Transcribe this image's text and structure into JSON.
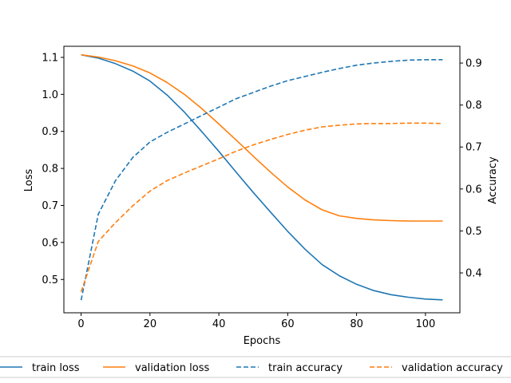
{
  "chart_data": {
    "type": "line",
    "xlabel": "Epochs",
    "ylabel_left": "Loss",
    "ylabel_right": "Accuracy",
    "xlim": [
      -5,
      110
    ],
    "ylim_left": [
      0.41,
      1.13
    ],
    "ylim_right": [
      0.305,
      0.94
    ],
    "x_ticks": [
      0,
      20,
      40,
      60,
      80,
      100
    ],
    "y_ticks_left": [
      0.5,
      0.6,
      0.7,
      0.8,
      0.9,
      1.0,
      1.1
    ],
    "y_ticks_right": [
      0.4,
      0.5,
      0.6,
      0.7,
      0.8,
      0.9
    ],
    "grid": false,
    "legend_placement": "bottom",
    "x": [
      0,
      5,
      10,
      15,
      20,
      25,
      30,
      35,
      40,
      45,
      50,
      55,
      60,
      65,
      70,
      75,
      80,
      85,
      90,
      95,
      100,
      105
    ],
    "series": [
      {
        "name": "train loss",
        "axis": "left",
        "style": "solid",
        "color": "#1f77b4",
        "values": [
          1.107,
          1.098,
          1.083,
          1.063,
          1.036,
          0.998,
          0.952,
          0.9,
          0.846,
          0.79,
          0.735,
          0.682,
          0.63,
          0.582,
          0.54,
          0.51,
          0.487,
          0.47,
          0.459,
          0.452,
          0.447,
          0.445
        ]
      },
      {
        "name": "validation loss",
        "axis": "left",
        "style": "solid",
        "color": "#ff7f0e",
        "values": [
          1.107,
          1.101,
          1.091,
          1.077,
          1.058,
          1.032,
          1.0,
          0.962,
          0.92,
          0.877,
          0.833,
          0.79,
          0.75,
          0.715,
          0.688,
          0.672,
          0.665,
          0.661,
          0.659,
          0.658,
          0.658,
          0.658
        ]
      },
      {
        "name": "train accuracy",
        "axis": "right",
        "style": "dashed",
        "color": "#1f77b4",
        "values": [
          0.335,
          0.54,
          0.62,
          0.675,
          0.712,
          0.735,
          0.755,
          0.775,
          0.795,
          0.815,
          0.83,
          0.845,
          0.858,
          0.868,
          0.878,
          0.887,
          0.895,
          0.9,
          0.904,
          0.907,
          0.908,
          0.908
        ]
      },
      {
        "name": "validation accuracy",
        "axis": "right",
        "style": "dashed",
        "color": "#ff7f0e",
        "values": [
          0.355,
          0.475,
          0.52,
          0.56,
          0.595,
          0.62,
          0.638,
          0.655,
          0.672,
          0.69,
          0.705,
          0.718,
          0.73,
          0.74,
          0.748,
          0.752,
          0.755,
          0.756,
          0.756,
          0.757,
          0.757,
          0.756
        ]
      }
    ]
  }
}
